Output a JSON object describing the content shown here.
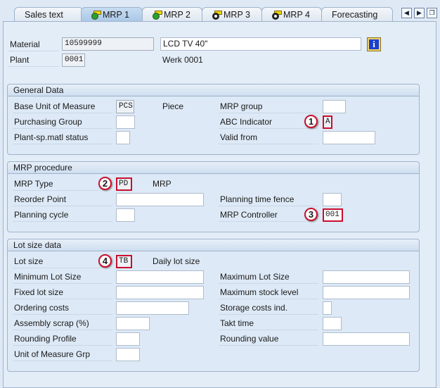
{
  "tabs": [
    {
      "label": "Sales text"
    },
    {
      "label": "MRP 1",
      "active": true,
      "icon": "check-icon"
    },
    {
      "label": "MRP 2",
      "icon": "check-icon"
    },
    {
      "label": "MRP 3",
      "icon": "radio-icon"
    },
    {
      "label": "MRP 4",
      "icon": "radio-icon"
    },
    {
      "label": "Forecasting"
    }
  ],
  "header": {
    "material_label": "Material",
    "material": "10599999",
    "description": "LCD TV 40\"",
    "plant_label": "Plant",
    "plant": "0001",
    "plant_name": "Werk 0001"
  },
  "general": {
    "title": "General Data",
    "base_uom_label": "Base Unit of Measure",
    "base_uom": "PCS",
    "base_uom_text": "Piece",
    "purch_group_label": "Purchasing Group",
    "purch_group": "",
    "matl_status_label": "Plant-sp.matl status",
    "matl_status": "",
    "mrp_group_label": "MRP group",
    "mrp_group": "",
    "abc_label": "ABC Indicator",
    "abc": "A",
    "valid_from_label": "Valid from",
    "valid_from": ""
  },
  "procedure": {
    "title": "MRP procedure",
    "mrp_type_label": "MRP Type",
    "mrp_type": "PD",
    "mrp_type_text": "MRP",
    "reorder_label": "Reorder Point",
    "reorder": "",
    "cycle_label": "Planning cycle",
    "cycle": "",
    "fence_label": "Planning time fence",
    "fence": "",
    "controller_label": "MRP Controller",
    "controller": "001"
  },
  "lot": {
    "title": "Lot size data",
    "lot_size_label": "Lot size",
    "lot_size": "TB",
    "lot_size_text": "Daily lot size",
    "min_label": "Minimum Lot Size",
    "fixed_label": "Fixed lot size",
    "ordering_label": "Ordering costs",
    "scrap_label": "Assembly scrap (%)",
    "rounding_profile_label": "Rounding Profile",
    "uom_grp_label": "Unit of Measure Grp",
    "max_label": "Maximum Lot Size",
    "max_stock_label": "Maximum stock level",
    "storage_label": "Storage costs ind.",
    "takt_label": "Takt time",
    "rounding_value_label": "Rounding value"
  },
  "badges": [
    "1",
    "2",
    "3",
    "4"
  ],
  "colors": {
    "highlight": "#c8102e",
    "panel": "#e3edf7"
  }
}
